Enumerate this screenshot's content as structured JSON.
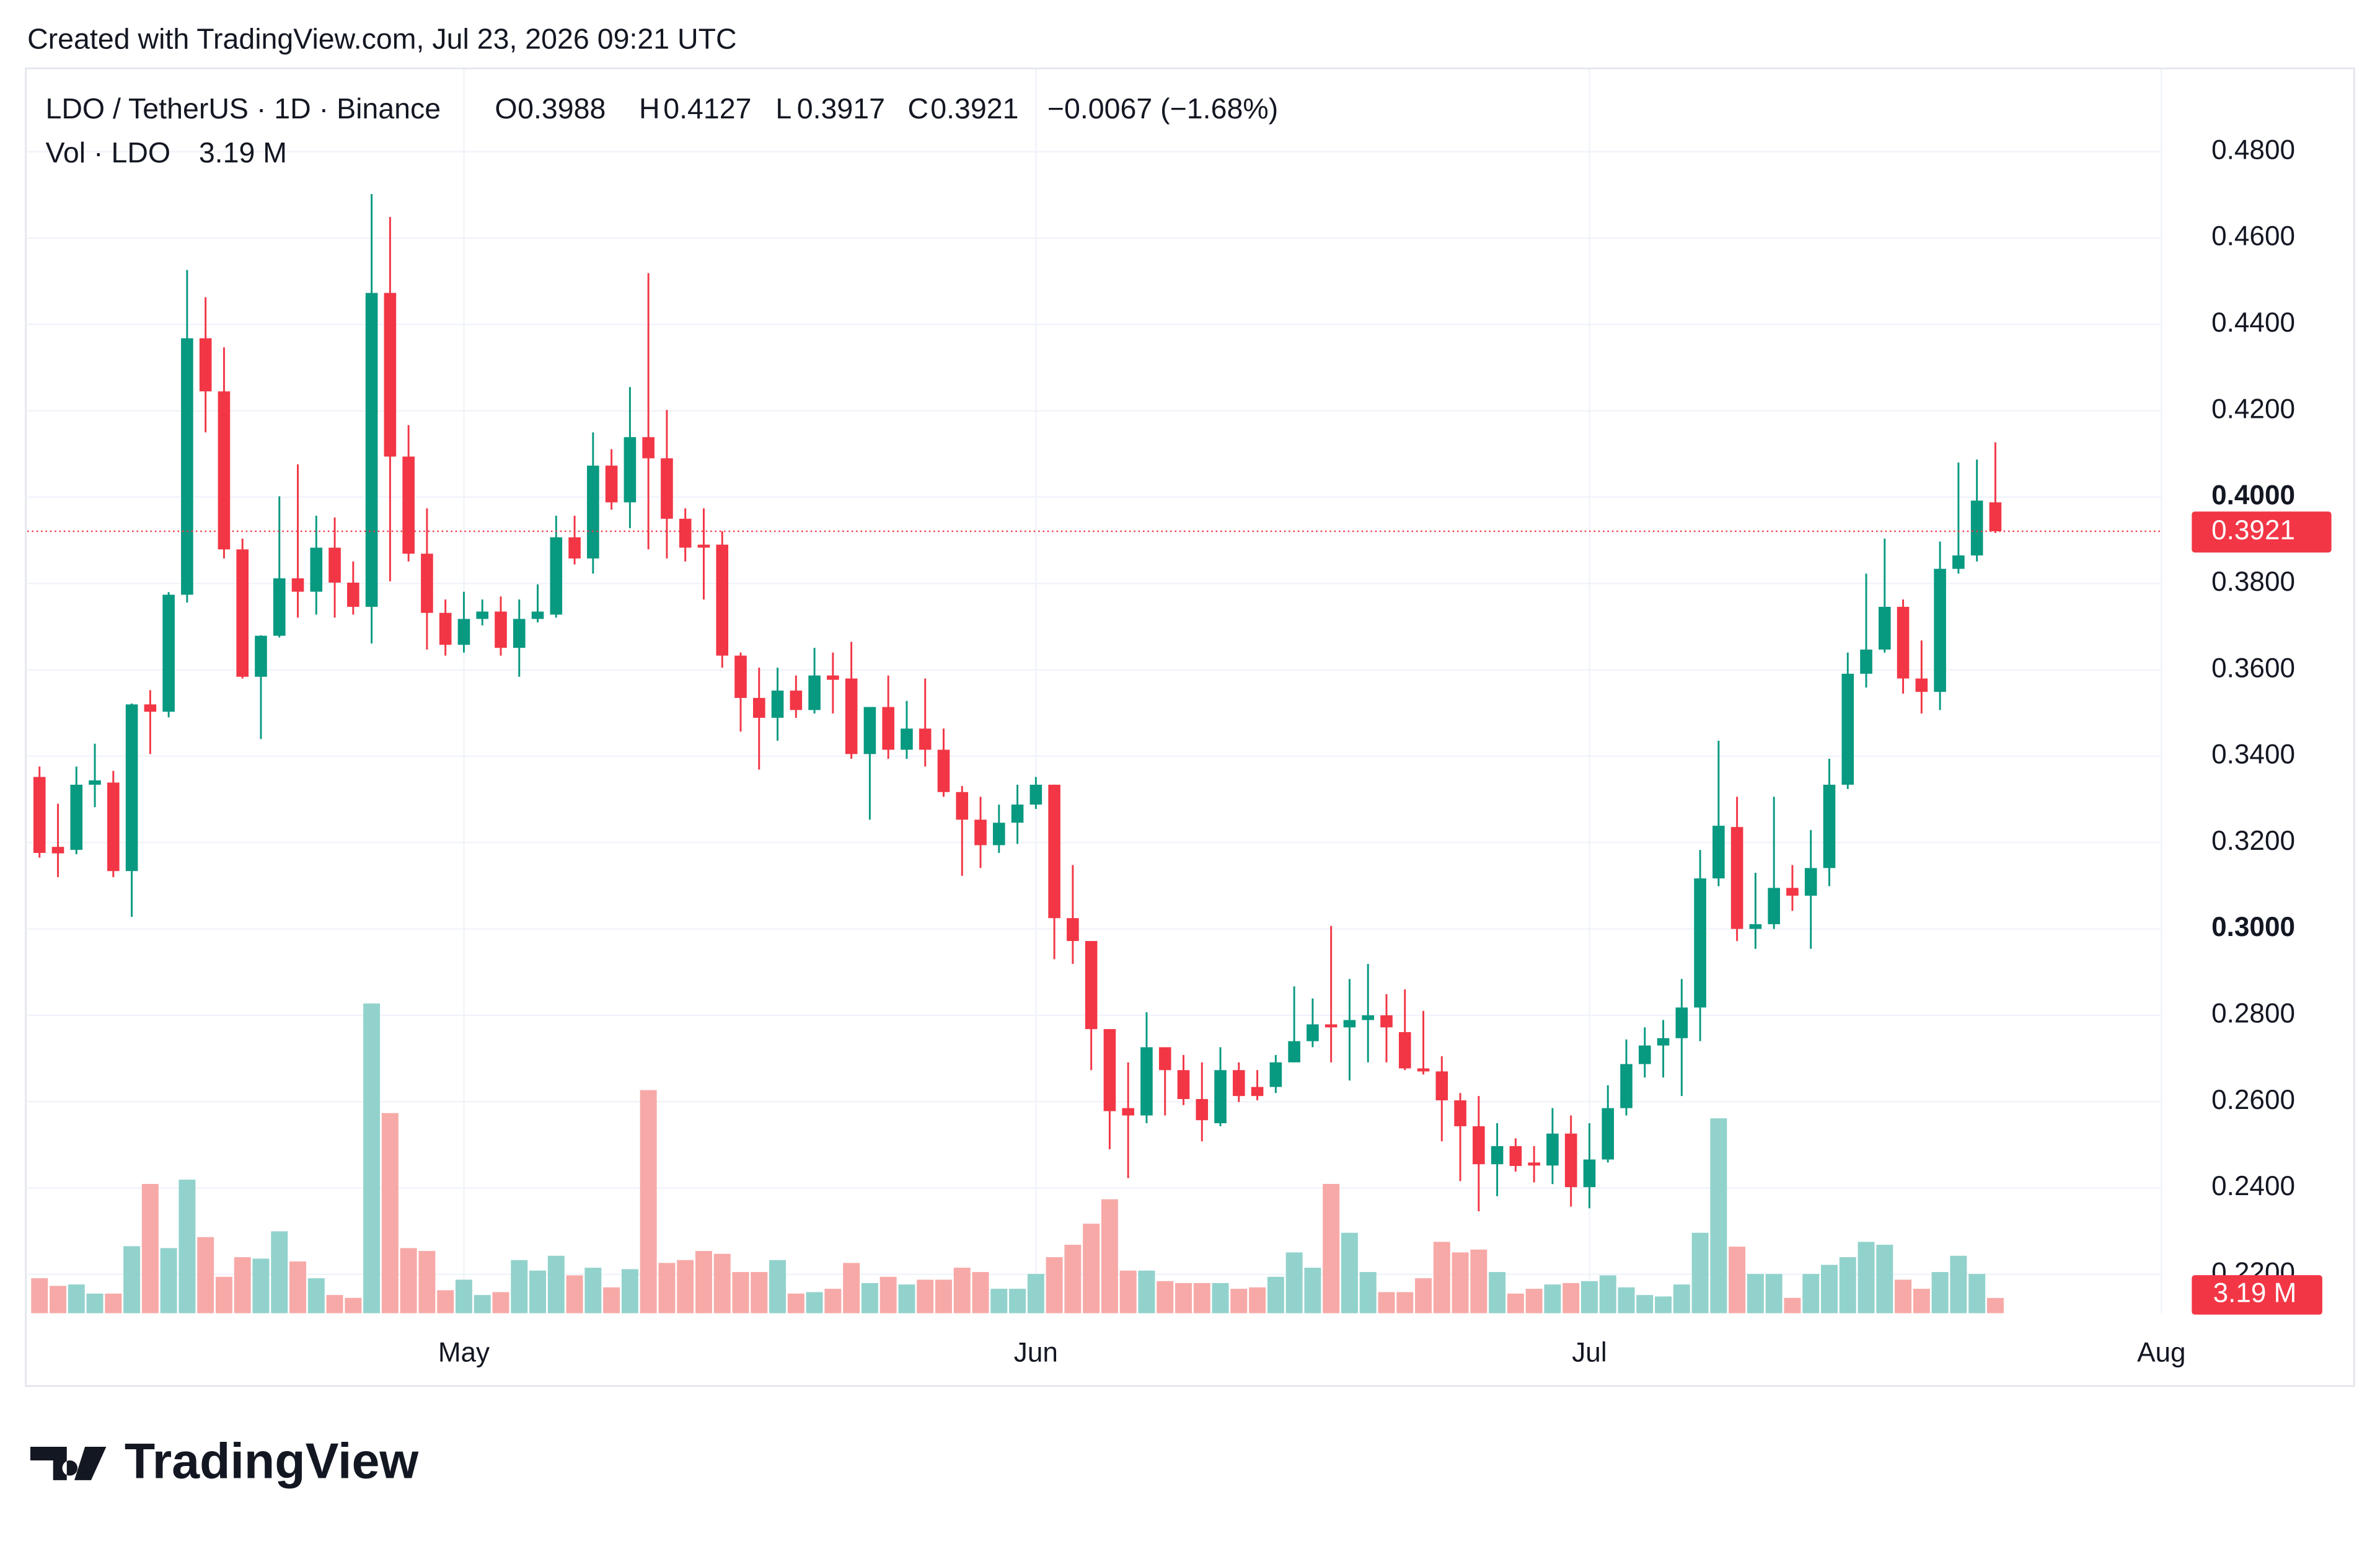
{
  "chart_data": {
    "type": "candlestick",
    "subtitle": "Created with TradingView.com, Jul 23, 2026 09:21 UTC",
    "title": "LDO / TetherUS · 1D · Binance",
    "ohlc_labels": [
      "O",
      "H",
      "L",
      "C"
    ],
    "change": "−0.0067 (−1.68%)",
    "volume_title": "Vol · LDO",
    "volume_label": "3.19 M",
    "brand": "TradingView",
    "up_color": "#089981",
    "down_color": "#f23645",
    "volume_up_color": "#92d2cc",
    "volume_down_color": "#f7a9a7",
    "grid": true,
    "xlim": [
      -0.66,
      115
    ],
    "xticks": [
      {
        "value": 23,
        "label": "May"
      },
      {
        "value": 54,
        "label": "Jun"
      },
      {
        "value": 84,
        "label": "Jul"
      },
      {
        "value": 115,
        "label": "Aug"
      }
    ],
    "ylim": [
      0.211,
      0.4993
    ],
    "yticks": [
      {
        "value": 0.22,
        "label": "0.2200"
      },
      {
        "value": 0.24,
        "label": "0.2400"
      },
      {
        "value": 0.26,
        "label": "0.2600"
      },
      {
        "value": 0.28,
        "label": "0.2800"
      },
      {
        "value": 0.3,
        "label": "0.3000"
      },
      {
        "value": 0.32,
        "label": "0.3200"
      },
      {
        "value": 0.34,
        "label": "0.3400"
      },
      {
        "value": 0.36,
        "label": "0.3600"
      },
      {
        "value": 0.38,
        "label": "0.3800"
      },
      {
        "value": 0.4,
        "label": "0.4000"
      },
      {
        "value": 0.42,
        "label": "0.4200"
      },
      {
        "value": 0.44,
        "label": "0.4400"
      },
      {
        "value": 0.46,
        "label": "0.4600"
      },
      {
        "value": 0.48,
        "label": "0.4800"
      }
    ],
    "y2lim": [
      0,
      260
    ],
    "open": [
      0.3352,
      0.319,
      0.3183,
      0.3334,
      0.3339,
      0.3134,
      0.352,
      0.3503,
      0.3774,
      0.4368,
      0.4245,
      0.3879,
      0.3584,
      0.3679,
      0.3812,
      0.3781,
      0.3883,
      0.3802,
      0.3746,
      0.4473,
      0.4094,
      0.3869,
      0.3732,
      0.3658,
      0.3718,
      0.3735,
      0.3651,
      0.3718,
      0.3728,
      0.3907,
      0.3858,
      0.4073,
      0.3988,
      0.4139,
      0.409,
      0.395,
      0.389,
      0.389,
      0.3633,
      0.3535,
      0.3489,
      0.3552,
      0.3507,
      0.3587,
      0.358,
      0.3405,
      0.3514,
      0.3415,
      0.3464,
      0.3415,
      0.3317,
      0.3253,
      0.3194,
      0.3246,
      0.3288,
      0.3334,
      0.3025,
      0.2972,
      0.2768,
      0.2585,
      0.2568,
      0.2726,
      0.2673,
      0.2606,
      0.255,
      0.2673,
      0.2634,
      0.2634,
      0.2691,
      0.274,
      0.2779,
      0.2772,
      0.2789,
      0.28,
      0.2761,
      0.2677,
      0.267,
      0.2603,
      0.2543,
      0.2455,
      0.2497,
      0.2459,
      0.2452,
      0.2526,
      0.2402,
      0.2466,
      0.2585,
      0.2687,
      0.273,
      0.2747,
      0.2818,
      0.3117,
      0.3236,
      0.3,
      0.3011,
      0.3095,
      0.3077,
      0.3141,
      0.3334,
      0.3591,
      0.3647,
      0.3746,
      0.358,
      0.3549,
      0.3834,
      0.3865,
      0.3988
    ],
    "high": [
      0.3376,
      0.329,
      0.3376,
      0.3429,
      0.3366,
      0.3522,
      0.3553,
      0.378,
      0.4526,
      0.4463,
      0.4347,
      0.3904,
      0.368,
      0.4002,
      0.4076,
      0.3957,
      0.3953,
      0.3851,
      0.4702,
      0.4649,
      0.4167,
      0.3974,
      0.3763,
      0.3781,
      0.3763,
      0.377,
      0.3763,
      0.3798,
      0.3957,
      0.3957,
      0.415,
      0.4111,
      0.4255,
      0.4519,
      0.4202,
      0.3974,
      0.3974,
      0.3921,
      0.364,
      0.3605,
      0.3605,
      0.3587,
      0.3651,
      0.364,
      0.3665,
      0.3514,
      0.3587,
      0.3528,
      0.358,
      0.3464,
      0.3331,
      0.3306,
      0.3288,
      0.3334,
      0.3352,
      0.3334,
      0.3148,
      0.2972,
      0.2768,
      0.2691,
      0.2807,
      0.2726,
      0.2708,
      0.2691,
      0.2726,
      0.2691,
      0.2673,
      0.2708,
      0.2867,
      0.2839,
      0.3007,
      0.2884,
      0.2919,
      0.2849,
      0.286,
      0.281,
      0.2705,
      0.262,
      0.2613,
      0.255,
      0.2515,
      0.2497,
      0.2585,
      0.2568,
      0.255,
      0.2638,
      0.2744,
      0.2772,
      0.2789,
      0.2884,
      0.3183,
      0.3436,
      0.3306,
      0.313,
      0.3306,
      0.3148,
      0.3229,
      0.3394,
      0.364,
      0.3823,
      0.3904,
      0.3763,
      0.3668,
      0.3897,
      0.408,
      0.4087,
      0.4127
    ],
    "low": [
      0.3165,
      0.312,
      0.3173,
      0.3282,
      0.312,
      0.3028,
      0.3405,
      0.349,
      0.3756,
      0.415,
      0.3858,
      0.358,
      0.344,
      0.3675,
      0.3721,
      0.3728,
      0.3721,
      0.3728,
      0.3661,
      0.3805,
      0.3851,
      0.3647,
      0.3633,
      0.364,
      0.3703,
      0.3633,
      0.3584,
      0.371,
      0.3721,
      0.3844,
      0.3823,
      0.3971,
      0.3928,
      0.3879,
      0.3858,
      0.3851,
      0.3763,
      0.3605,
      0.3457,
      0.3369,
      0.3436,
      0.3489,
      0.3499,
      0.3499,
      0.3394,
      0.3253,
      0.3394,
      0.3394,
      0.3376,
      0.3306,
      0.3123,
      0.3141,
      0.3176,
      0.3197,
      0.3278,
      0.293,
      0.2919,
      0.2673,
      0.249,
      0.2423,
      0.255,
      0.2568,
      0.2592,
      0.2508,
      0.2543,
      0.2599,
      0.2603,
      0.262,
      0.2691,
      0.2726,
      0.2691,
      0.2649,
      0.2691,
      0.2691,
      0.2673,
      0.2663,
      0.2508,
      0.2416,
      0.2346,
      0.2381,
      0.2438,
      0.2413,
      0.2409,
      0.2357,
      0.2353,
      0.2459,
      0.2568,
      0.2656,
      0.2656,
      0.2613,
      0.274,
      0.3099,
      0.2972,
      0.2954,
      0.3,
      0.3042,
      0.2954,
      0.3099,
      0.3324,
      0.3559,
      0.364,
      0.3545,
      0.3499,
      0.3507,
      0.3823,
      0.3851,
      0.3917
    ],
    "close": [
      0.3176,
      0.3175,
      0.3334,
      0.3344,
      0.3134,
      0.352,
      0.3503,
      0.3774,
      0.4368,
      0.4245,
      0.3879,
      0.3584,
      0.3679,
      0.3812,
      0.3781,
      0.3883,
      0.3802,
      0.3746,
      0.4473,
      0.4094,
      0.3869,
      0.3732,
      0.3658,
      0.3718,
      0.3735,
      0.3651,
      0.3718,
      0.3735,
      0.3907,
      0.3858,
      0.4073,
      0.3988,
      0.4139,
      0.409,
      0.395,
      0.3883,
      0.3883,
      0.3633,
      0.3535,
      0.3489,
      0.3552,
      0.3507,
      0.3587,
      0.3577,
      0.3405,
      0.3514,
      0.3415,
      0.3464,
      0.3415,
      0.3317,
      0.3253,
      0.3194,
      0.3246,
      0.3288,
      0.3334,
      0.3025,
      0.2972,
      0.2768,
      0.2578,
      0.2568,
      0.2726,
      0.2673,
      0.2606,
      0.2557,
      0.2673,
      0.2613,
      0.2613,
      0.2691,
      0.274,
      0.2779,
      0.2772,
      0.2789,
      0.28,
      0.2772,
      0.2677,
      0.267,
      0.2603,
      0.2543,
      0.2455,
      0.2497,
      0.2451,
      0.2452,
      0.2526,
      0.2402,
      0.2466,
      0.2585,
      0.2687,
      0.273,
      0.2747,
      0.2818,
      0.3117,
      0.3239,
      0.3,
      0.3011,
      0.3095,
      0.3077,
      0.3141,
      0.3334,
      0.3591,
      0.3647,
      0.3746,
      0.358,
      0.3549,
      0.3834,
      0.3865,
      0.3992,
      0.3921
    ],
    "volume": [
      7.3,
      5.7,
      6.0,
      4.1,
      4.1,
      14,
      27,
      13.6,
      27.9,
      15.9,
      7.6,
      11.7,
      11.4,
      17.1,
      10.8,
      7.3,
      3.8,
      3.2,
      64.7,
      41.8,
      13.6,
      13,
      4.8,
      7,
      3.8,
      4.4,
      11.1,
      8.9,
      12,
      7.9,
      9.5,
      5.4,
      9.2,
      46.6,
      10.5,
      11.1,
      13,
      12.4,
      8.6,
      8.6,
      11.1,
      4.1,
      4.4,
      5.1,
      10.5,
      6.3,
      7.6,
      6,
      7,
      7,
      9.5,
      8.6,
      5.1,
      5.1,
      8.2,
      11.7,
      14.3,
      18.7,
      23.8,
      8.9,
      8.9,
      6.7,
      6.3,
      6.3,
      6.3,
      5.1,
      5.4,
      7.6,
      12.7,
      9.5,
      27,
      16.8,
      8.6,
      4.4,
      4.4,
      7.3,
      14.9,
      12.7,
      13.3,
      8.6,
      4.1,
      5.1,
      6,
      6.3,
      6.7,
      7.9,
      5.4,
      3.8,
      3.5,
      6,
      16.8,
      40.7,
      13.9,
      8.2,
      8.2,
      3.2,
      8.2,
      10.1,
      11.7,
      14.9,
      14.3,
      7,
      5.1,
      8.6,
      12,
      8.2,
      3.19
    ]
  }
}
